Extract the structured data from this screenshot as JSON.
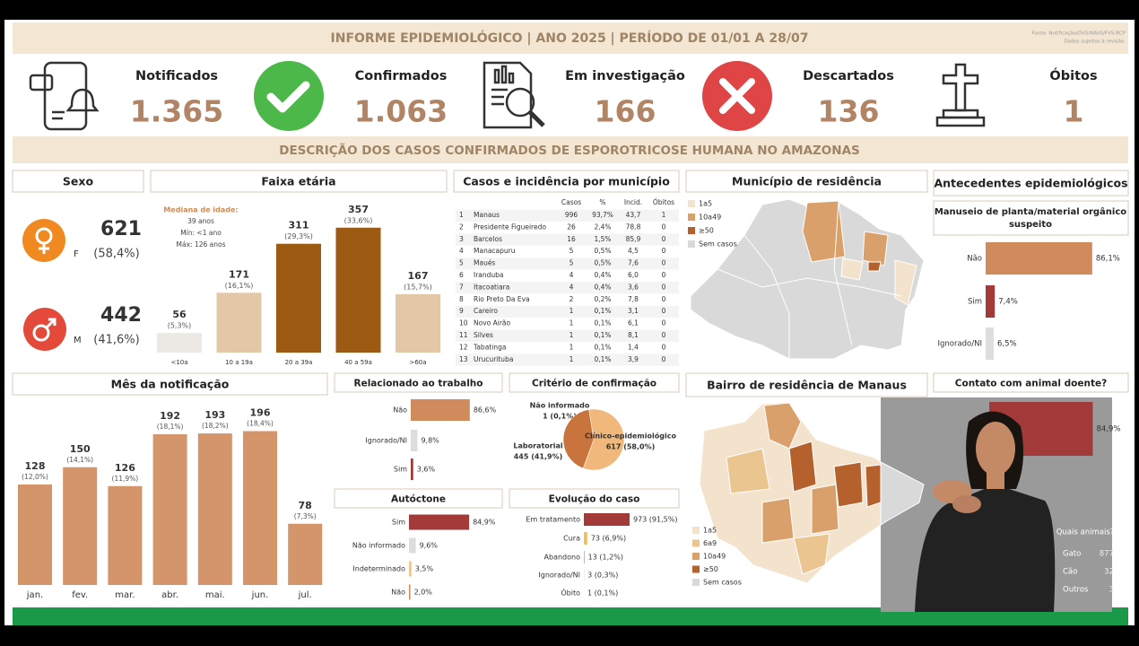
{
  "header": {
    "title": "INFORME EPIDEMIOLÓGICO | ANO 2025 | PERÍODO DE 01/01 A 28/07",
    "source": "Fonte: Notificação/DVS/NAVS/FVS-RCP",
    "note": "Dados sujeitos à revisão."
  },
  "kpis": [
    {
      "label": "Notificados",
      "value": "1.365"
    },
    {
      "label": "Confirmados",
      "value": "1.063"
    },
    {
      "label": "Em investigação",
      "value": "166"
    },
    {
      "label": "Descartados",
      "value": "136"
    },
    {
      "label": "Óbitos",
      "value": "1"
    }
  ],
  "subtitle": "DESCRIÇÃO DOS CASOS CONFIRMADOS DE ESPOROTRICOSE HUMANA NO AMAZONAS",
  "sex": {
    "title": "Sexo",
    "rows": [
      {
        "code": "F",
        "count": "621",
        "share": "(58,4%)"
      },
      {
        "code": "M",
        "count": "442",
        "share": "(41,6%)"
      }
    ]
  },
  "municipalities": {
    "title": "Casos e incidência por município",
    "columns": [
      "Casos",
      "%",
      "Incid.",
      "Óbitos"
    ],
    "rows": [
      [
        "1",
        "Manaus",
        "996",
        "93,7%",
        "43,7",
        "1"
      ],
      [
        "2",
        "Presidente Figueiredo",
        "26",
        "2,4%",
        "78,8",
        "0"
      ],
      [
        "3",
        "Barcelos",
        "16",
        "1,5%",
        "85,9",
        "0"
      ],
      [
        "4",
        "Manacapuru",
        "5",
        "0,5%",
        "4,5",
        "0"
      ],
      [
        "5",
        "Maués",
        "5",
        "0,5%",
        "7,6",
        "0"
      ],
      [
        "6",
        "Iranduba",
        "4",
        "0,4%",
        "6,0",
        "0"
      ],
      [
        "7",
        "Itacoatiara",
        "4",
        "0,4%",
        "3,6",
        "0"
      ],
      [
        "8",
        "Rio Preto Da Eva",
        "2",
        "0,2%",
        "7,8",
        "0"
      ],
      [
        "9",
        "Careiro",
        "1",
        "0,1%",
        "3,1",
        "0"
      ],
      [
        "10",
        "Novo Airão",
        "1",
        "0,1%",
        "6,1",
        "0"
      ],
      [
        "11",
        "Silves",
        "1",
        "0,1%",
        "8,1",
        "0"
      ],
      [
        "12",
        "Tabatinga",
        "1",
        "0,1%",
        "1,4",
        "0"
      ],
      [
        "13",
        "Urucurituba",
        "1",
        "0,1%",
        "3,9",
        "0"
      ]
    ]
  },
  "residence_map": {
    "title": "Município de residência",
    "legend": [
      {
        "label": "1a5",
        "color": "#f3e3cc"
      },
      {
        "label": "10a49",
        "color": "#d9a06b"
      },
      {
        "label": "≥50",
        "color": "#b5612d"
      },
      {
        "label": "Sem casos",
        "color": "#d9d9d9"
      }
    ]
  },
  "manaus_map": {
    "title": "Bairro de residência de Manaus",
    "legend": [
      {
        "label": "1a5",
        "color": "#f3e3cc"
      },
      {
        "label": "6a9",
        "color": "#ebc590"
      },
      {
        "label": "10a49",
        "color": "#d9a06b"
      },
      {
        "label": "≥50",
        "color": "#b5612d"
      },
      {
        "label": "Sem casos",
        "color": "#d9d9d9"
      }
    ]
  },
  "antecedents_title": "Antecedentes epidemiológicos",
  "animals": {
    "title": "Quais animais?",
    "rows": [
      [
        "Gato",
        "877"
      ],
      [
        "Cão",
        "32"
      ],
      [
        "Outros",
        "3"
      ]
    ]
  },
  "chart_data": [
    {
      "type": "bar",
      "title": "Faixa etária",
      "categories": [
        "<10a",
        "10 a 19a",
        "20 a 39a",
        "40 a 59a",
        ">60a"
      ],
      "values": [
        56,
        171,
        311,
        357,
        167
      ],
      "shares": [
        "(5,3%)",
        "(16,1%)",
        "(29,3%)",
        "(33,6%)",
        "(15,7%)"
      ],
      "colors": [
        "#ece8e3",
        "#e3c8a8",
        "#9c5a12",
        "#9c5a12",
        "#e3c8a8"
      ],
      "ylim": [
        0,
        400
      ],
      "notes": [
        "Mediana de idade:",
        "39 anos",
        "Mín: <1 ano",
        "Máx: 126 anos"
      ]
    },
    {
      "type": "bar",
      "title": "Mês da notificação",
      "categories": [
        "jan.",
        "fev.",
        "mar.",
        "abr.",
        "mai.",
        "jun.",
        "jul."
      ],
      "values": [
        128,
        150,
        126,
        192,
        193,
        196,
        78
      ],
      "shares": [
        "(12,0%)",
        "(14,1%)",
        "(11,9%)",
        "(18,1%)",
        "(18,2%)",
        "(18,4%)",
        "(7,3%)"
      ],
      "color": "#d4956a",
      "ylim": [
        0,
        220
      ]
    },
    {
      "type": "hbar",
      "title": [
        "Manuseio de planta/material orgânico",
        "suspeito"
      ],
      "categories": [
        "Não",
        "Sim",
        "Ignorado/NI"
      ],
      "values": [
        86.1,
        7.4,
        6.5
      ],
      "value_labels": [
        "86,1%",
        "7,4%",
        "6,5%"
      ],
      "colors": [
        "#d08a5c",
        "#a33a3a",
        "#dddddd"
      ],
      "xlim": [
        0,
        100
      ]
    },
    {
      "type": "hbar",
      "title": "Contato com animal doente?",
      "categories": [
        null
      ],
      "values": [
        84.9
      ],
      "value_labels": [
        "84,9%"
      ],
      "colors": [
        "#a33a3a"
      ],
      "xlim": [
        0,
        100
      ]
    },
    {
      "type": "hbar",
      "title": "Relacionado ao trabalho",
      "categories": [
        "Não",
        "Ignorado/NI",
        "Sim"
      ],
      "values": [
        86.6,
        9.8,
        3.6
      ],
      "value_labels": [
        "86,6%",
        "9,8%",
        "3,6%"
      ],
      "colors": [
        "#d08a5c",
        "#dddddd",
        "#a33a3a"
      ],
      "xlim": [
        0,
        100
      ]
    },
    {
      "type": "hbar",
      "title": "Autóctone",
      "categories": [
        "Sim",
        "Não informado",
        "Indeterminado",
        "Não"
      ],
      "values": [
        84.9,
        9.6,
        3.5,
        2.0
      ],
      "value_labels": [
        "84,9%",
        "9,6%",
        "3,5%",
        "2,0%"
      ],
      "colors": [
        "#a33a3a",
        "#dddddd",
        "#ebc590",
        "#d08a5c"
      ],
      "xlim": [
        0,
        100
      ]
    },
    {
      "type": "pie",
      "title": "Critério de confirmação",
      "categories": [
        "Não informado",
        "Laboratorial",
        "Clínico-epidemiológico"
      ],
      "values": [
        1,
        445,
        617
      ],
      "value_labels": [
        "1 (0,1%)",
        "445 (41,9%)",
        "617 (58,0%)"
      ],
      "colors": [
        "#7a3a10",
        "#c8743c",
        "#f0b87a"
      ]
    },
    {
      "type": "hbar",
      "title": "Evolução do caso",
      "categories": [
        "Em tratamento",
        "Cura",
        "Abandono",
        "Ignorado/NI",
        "Óbito"
      ],
      "values": [
        973,
        73,
        13,
        3,
        1
      ],
      "value_labels": [
        "973 (91,5%)",
        "73 (6,9%)",
        "13 (1,2%)",
        "3 (0,3%)",
        "1 (0,1%)"
      ],
      "colors": [
        "#a33a3a",
        "#f0c060",
        "#d08a5c",
        "#d08a5c",
        "#d08a5c"
      ],
      "xlim": [
        0,
        1000
      ]
    }
  ]
}
